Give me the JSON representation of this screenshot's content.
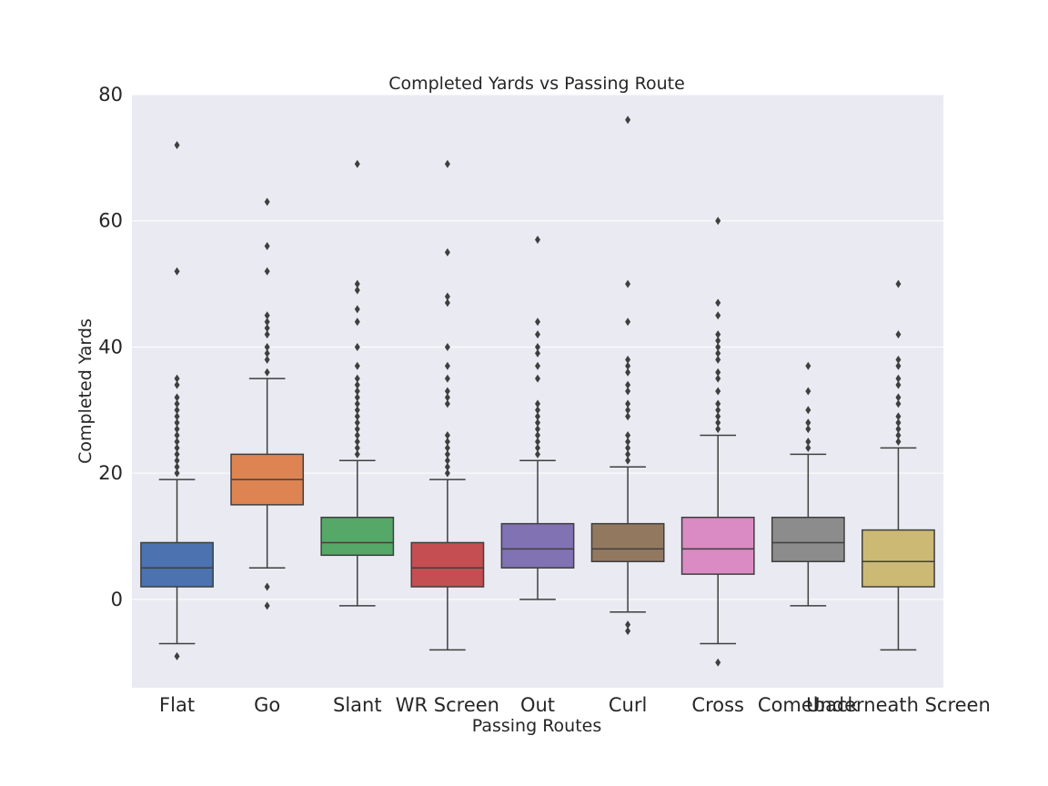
{
  "chart_data": {
    "type": "box",
    "title": "Completed Yards vs Passing Route",
    "xlabel": "Passing Routes",
    "ylabel": "Completed Yards",
    "ylim": [
      -14,
      80
    ],
    "yticks": [
      0,
      20,
      40,
      60,
      80
    ],
    "grid": true,
    "background": "#eaeaf2",
    "categories": [
      "Flat",
      "Go",
      "Slant",
      "WR Screen",
      "Out",
      "Curl",
      "Cross",
      "Comeback",
      "Underneath Screen"
    ],
    "series": [
      {
        "category": "Flat",
        "color": "#4c72b0",
        "whisker_low": -7,
        "q1": 2,
        "median": 5,
        "q3": 9,
        "whisker_high": 19,
        "outliers": [
          -9,
          20,
          21,
          22,
          23,
          24,
          25,
          26,
          27,
          28,
          29,
          30,
          31,
          32,
          34,
          35,
          52,
          72
        ]
      },
      {
        "category": "Go",
        "color": "#dd8452",
        "whisker_low": 5,
        "q1": 15,
        "median": 19,
        "q3": 23,
        "whisker_high": 35,
        "outliers": [
          -1,
          2,
          36,
          38,
          39,
          40,
          42,
          43,
          44,
          45,
          52,
          56,
          63
        ]
      },
      {
        "category": "Slant",
        "color": "#55a868",
        "whisker_low": -1,
        "q1": 7,
        "median": 9,
        "q3": 13,
        "whisker_high": 22,
        "outliers": [
          23,
          24,
          25,
          26,
          27,
          28,
          29,
          30,
          31,
          32,
          33,
          34,
          35,
          37,
          40,
          44,
          46,
          49,
          50,
          69
        ]
      },
      {
        "category": "WR Screen",
        "color": "#c44e52",
        "whisker_low": -8,
        "q1": 2,
        "median": 5,
        "q3": 9,
        "whisker_high": 19,
        "outliers": [
          20,
          21,
          22,
          23,
          24,
          25,
          26,
          31,
          32,
          33,
          35,
          37,
          40,
          47,
          48,
          55,
          69
        ]
      },
      {
        "category": "Out",
        "color": "#8172b3",
        "whisker_low": 0,
        "q1": 5,
        "median": 8,
        "q3": 12,
        "whisker_high": 22,
        "outliers": [
          23,
          24,
          25,
          26,
          27,
          28,
          29,
          30,
          31,
          35,
          37,
          39,
          40,
          42,
          44,
          57
        ]
      },
      {
        "category": "Curl",
        "color": "#937860",
        "whisker_low": -2,
        "q1": 6,
        "median": 8,
        "q3": 12,
        "whisker_high": 21,
        "outliers": [
          -5,
          -4,
          22,
          23,
          24,
          25,
          26,
          29,
          30,
          31,
          33,
          34,
          36,
          37,
          38,
          44,
          50,
          76
        ]
      },
      {
        "category": "Cross",
        "color": "#da8bc3",
        "whisker_low": -7,
        "q1": 4,
        "median": 8,
        "q3": 13,
        "whisker_high": 26,
        "outliers": [
          -10,
          27,
          28,
          29,
          30,
          31,
          33,
          35,
          36,
          38,
          39,
          40,
          41,
          42,
          45,
          47,
          60
        ]
      },
      {
        "category": "Comeback",
        "color": "#8c8c8c",
        "whisker_low": -1,
        "q1": 6,
        "median": 9,
        "q3": 13,
        "whisker_high": 23,
        "outliers": [
          24,
          25,
          27,
          28,
          30,
          33,
          37
        ]
      },
      {
        "category": "Underneath Screen",
        "color": "#ccb974",
        "whisker_low": -8,
        "q1": 2,
        "median": 6,
        "q3": 11,
        "whisker_high": 24,
        "outliers": [
          25,
          26,
          27,
          28,
          29,
          31,
          32,
          34,
          35,
          37,
          38,
          42,
          50
        ]
      }
    ]
  }
}
